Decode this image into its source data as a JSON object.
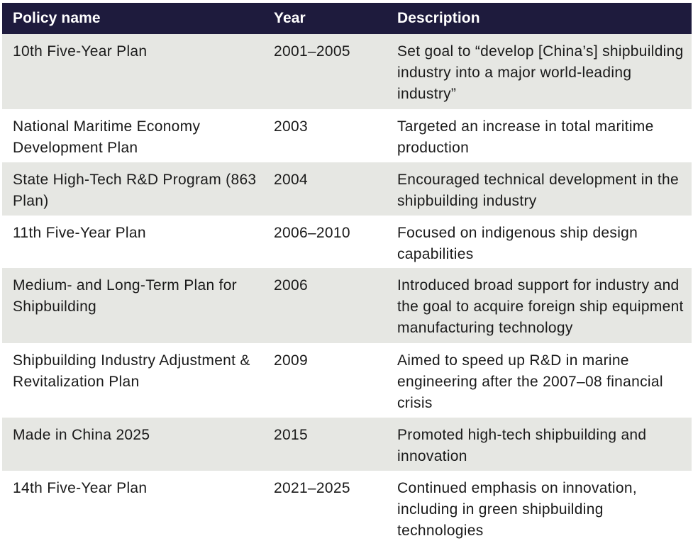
{
  "table": {
    "headers": [
      "Policy name",
      "Year",
      "Description"
    ],
    "rows": [
      {
        "name": "10th Five-Year Plan",
        "year": "2001–2005",
        "description": "Set goal to “develop [China’s] shipbuilding industry into a major world-leading industry”"
      },
      {
        "name": "National Maritime Economy Development Plan",
        "year": "2003",
        "description": "Targeted an increase in total maritime production"
      },
      {
        "name": "State High-Tech R&D Program (863 Plan)",
        "year": "2004",
        "description": "Encouraged technical development in the shipbuilding industry"
      },
      {
        "name": "11th Five-Year Plan",
        "year": "2006–2010",
        "description": "Focused on indigenous ship design capabilities"
      },
      {
        "name": "Medium- and Long-Term Plan for Shipbuilding",
        "year": "2006",
        "description": "Introduced broad support for industry and the goal to acquire foreign ship equipment manufacturing technology"
      },
      {
        "name": "Shipbuilding Industry Adjustment & Revitalization Plan",
        "year": "2009",
        "description": "Aimed to speed up R&D in marine engineering after the 2007–08 financial crisis"
      },
      {
        "name": "Made in China 2025",
        "year": "2015",
        "description": "Promoted high-tech shipbuilding and innovation"
      },
      {
        "name": "14th Five-Year Plan",
        "year": "2021–2025",
        "description": "Continued emphasis on innovation, including in green shipbuilding technologies"
      }
    ]
  },
  "colors": {
    "header_bg": "#1e1b3d",
    "header_text": "#ffffff",
    "row_shaded": "#e6e7e3",
    "row_plain": "#ffffff",
    "body_text": "#1a1a1a"
  }
}
